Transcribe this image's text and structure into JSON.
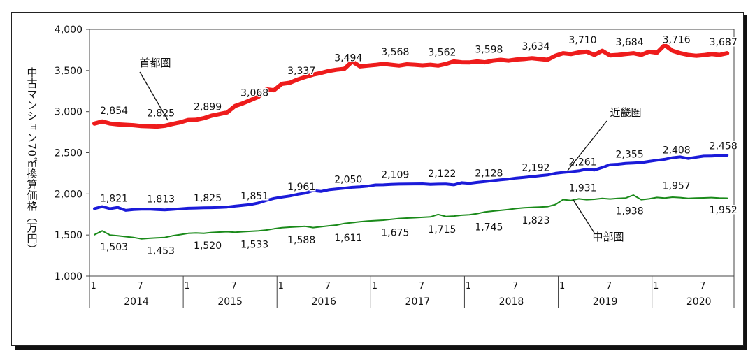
{
  "chart_data": {
    "type": "line",
    "ylabel": "中古マンション70㎡換算価格（万円）",
    "ylim": [
      1000,
      4000
    ],
    "yticks": [
      "1,000",
      "1,500",
      "2,000",
      "2,500",
      "3,000",
      "3,500",
      "4,000"
    ],
    "x_month_ticks": [
      "1",
      "7",
      "1",
      "7",
      "1",
      "7",
      "1",
      "7",
      "1",
      "7",
      "1",
      "7",
      "1",
      "7"
    ],
    "x_years": [
      "2014",
      "2015",
      "2016",
      "2017",
      "2018",
      "2019",
      "2020"
    ],
    "grid": false,
    "series": [
      {
        "name": "首都圏",
        "color": "#ee1c1c",
        "values": [
          2854,
          2880,
          2855,
          2845,
          2840,
          2835,
          2825,
          2822,
          2818,
          2828,
          2850,
          2870,
          2899,
          2900,
          2920,
          2950,
          2970,
          2990,
          3068,
          3100,
          3140,
          3180,
          3270,
          3260,
          3337,
          3350,
          3390,
          3420,
          3450,
          3470,
          3494,
          3510,
          3520,
          3610,
          3550,
          3560,
          3568,
          3580,
          3570,
          3560,
          3575,
          3570,
          3562,
          3570,
          3560,
          3580,
          3610,
          3600,
          3598,
          3610,
          3600,
          3620,
          3630,
          3620,
          3634,
          3640,
          3650,
          3640,
          3630,
          3680,
          3710,
          3700,
          3720,
          3730,
          3690,
          3740,
          3684,
          3690,
          3700,
          3710,
          3690,
          3730,
          3716,
          3810,
          3740,
          3710,
          3690,
          3680,
          3687,
          3700,
          3690,
          3710
        ],
        "labels": [
          "2,854",
          "2,825",
          "2,899",
          "3,068",
          "3,337",
          "3,494",
          "3,568",
          "3,562",
          "3,598",
          "3,634",
          "3,710",
          "3,684",
          "3,716",
          "3,687"
        ]
      },
      {
        "name": "近畿圏",
        "color": "#1b1bd9",
        "values": [
          1821,
          1845,
          1820,
          1835,
          1800,
          1810,
          1813,
          1815,
          1810,
          1805,
          1812,
          1818,
          1825,
          1828,
          1830,
          1832,
          1835,
          1840,
          1851,
          1860,
          1870,
          1890,
          1920,
          1945,
          1961,
          1975,
          1995,
          2010,
          2040,
          2030,
          2050,
          2060,
          2070,
          2080,
          2085,
          2095,
          2109,
          2110,
          2115,
          2118,
          2120,
          2121,
          2122,
          2115,
          2118,
          2120,
          2110,
          2135,
          2128,
          2140,
          2150,
          2160,
          2170,
          2180,
          2192,
          2200,
          2210,
          2220,
          2230,
          2250,
          2261,
          2270,
          2280,
          2300,
          2290,
          2320,
          2355,
          2360,
          2370,
          2375,
          2380,
          2395,
          2408,
          2420,
          2440,
          2450,
          2430,
          2445,
          2458,
          2460,
          2465,
          2470
        ],
        "labels": [
          "1,821",
          "1,813",
          "1,825",
          "1,851",
          "1,961",
          "2,050",
          "2,109",
          "2,122",
          "2,128",
          "2,192",
          "2,261",
          "2,355",
          "2,408",
          "2,458"
        ]
      },
      {
        "name": "中部圏",
        "color": "#1a8a1a",
        "values": [
          1503,
          1550,
          1500,
          1490,
          1480,
          1470,
          1453,
          1460,
          1465,
          1470,
          1490,
          1505,
          1520,
          1525,
          1520,
          1530,
          1535,
          1540,
          1533,
          1540,
          1545,
          1550,
          1560,
          1575,
          1588,
          1595,
          1600,
          1605,
          1590,
          1600,
          1611,
          1620,
          1640,
          1650,
          1660,
          1670,
          1675,
          1680,
          1690,
          1700,
          1705,
          1710,
          1715,
          1720,
          1750,
          1725,
          1730,
          1740,
          1745,
          1760,
          1780,
          1790,
          1800,
          1810,
          1823,
          1830,
          1835,
          1840,
          1845,
          1870,
          1931,
          1920,
          1940,
          1930,
          1935,
          1945,
          1938,
          1945,
          1950,
          1985,
          1930,
          1940,
          1957,
          1950,
          1960,
          1955,
          1945,
          1950,
          1952,
          1955,
          1950,
          1948
        ],
        "labels": [
          "1,503",
          "1,453",
          "1,520",
          "1,533",
          "1,588",
          "1,611",
          "1,675",
          "1,715",
          "1,745",
          "1,823",
          "1,931",
          "1,938",
          "1,957",
          "1,952"
        ]
      }
    ],
    "annotations": [
      "首都圏",
      "近畿圏",
      "中部圏"
    ]
  }
}
